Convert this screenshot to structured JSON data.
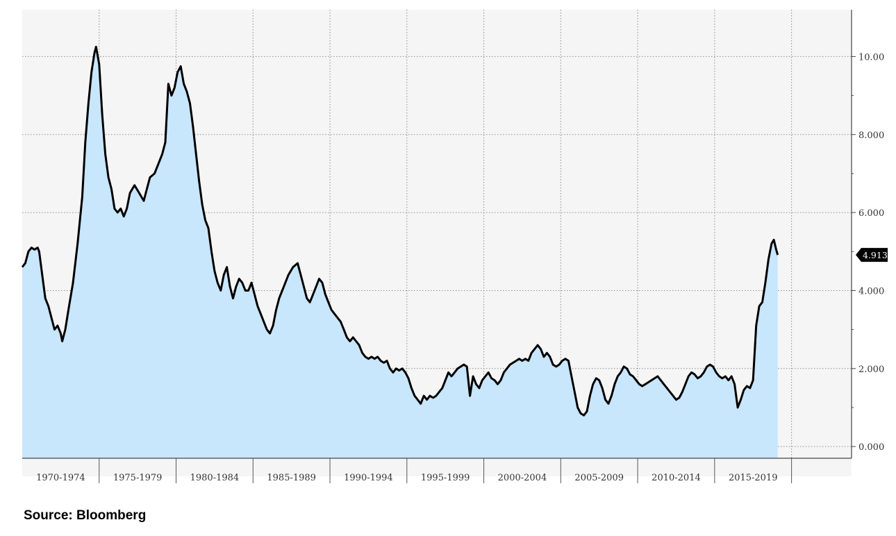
{
  "chart_data": {
    "type": "area",
    "title": "",
    "xlabel": "",
    "ylabel": "",
    "x_tick_labels": [
      "1970-1974",
      "1975-1979",
      "1980-1984",
      "1985-1989",
      "1990-1994",
      "1995-1999",
      "2000-2004",
      "2005-2009",
      "2010-2014",
      "2015-2019"
    ],
    "y_tick_labels": [
      "0.000",
      "2.000",
      "4.000",
      "6.000",
      "8.000",
      "10.00"
    ],
    "xlim": [
      1970.0,
      2023.9
    ],
    "ylim": [
      -0.3,
      11.2
    ],
    "grid": true,
    "last_value_label": "4.913",
    "colors": {
      "fill": "#c8e6fc",
      "line": "#000000",
      "background": "#f5f5f5",
      "badge": "#000000"
    },
    "series": [
      {
        "values": [
          [
            1970.0,
            4.6
          ],
          [
            1970.2,
            4.7
          ],
          [
            1970.4,
            5.0
          ],
          [
            1970.6,
            5.1
          ],
          [
            1970.8,
            5.05
          ],
          [
            1971.0,
            5.1
          ],
          [
            1971.1,
            5.0
          ],
          [
            1971.3,
            4.4
          ],
          [
            1971.5,
            3.8
          ],
          [
            1971.7,
            3.6
          ],
          [
            1971.9,
            3.3
          ],
          [
            1972.1,
            3.0
          ],
          [
            1972.3,
            3.1
          ],
          [
            1972.5,
            2.9
          ],
          [
            1972.6,
            2.7
          ],
          [
            1972.8,
            3.0
          ],
          [
            1973.0,
            3.5
          ],
          [
            1973.3,
            4.2
          ],
          [
            1973.6,
            5.2
          ],
          [
            1973.9,
            6.4
          ],
          [
            1974.1,
            7.8
          ],
          [
            1974.3,
            8.8
          ],
          [
            1974.5,
            9.6
          ],
          [
            1974.7,
            10.1
          ],
          [
            1974.8,
            10.25
          ],
          [
            1975.0,
            9.8
          ],
          [
            1975.2,
            8.5
          ],
          [
            1975.4,
            7.5
          ],
          [
            1975.6,
            6.9
          ],
          [
            1975.8,
            6.6
          ],
          [
            1976.0,
            6.1
          ],
          [
            1976.2,
            6.0
          ],
          [
            1976.4,
            6.1
          ],
          [
            1976.6,
            5.9
          ],
          [
            1976.8,
            6.1
          ],
          [
            1977.0,
            6.5
          ],
          [
            1977.3,
            6.7
          ],
          [
            1977.6,
            6.5
          ],
          [
            1977.9,
            6.3
          ],
          [
            1978.1,
            6.6
          ],
          [
            1978.3,
            6.9
          ],
          [
            1978.6,
            7.0
          ],
          [
            1978.9,
            7.3
          ],
          [
            1979.1,
            7.5
          ],
          [
            1979.3,
            7.8
          ],
          [
            1979.5,
            9.3
          ],
          [
            1979.7,
            9.0
          ],
          [
            1979.9,
            9.2
          ],
          [
            1980.1,
            9.6
          ],
          [
            1980.3,
            9.75
          ],
          [
            1980.5,
            9.3
          ],
          [
            1980.7,
            9.1
          ],
          [
            1980.9,
            8.8
          ],
          [
            1981.1,
            8.2
          ],
          [
            1981.3,
            7.5
          ],
          [
            1981.5,
            6.8
          ],
          [
            1981.7,
            6.2
          ],
          [
            1981.9,
            5.8
          ],
          [
            1982.1,
            5.6
          ],
          [
            1982.3,
            5.0
          ],
          [
            1982.5,
            4.5
          ],
          [
            1982.7,
            4.2
          ],
          [
            1982.9,
            4.0
          ],
          [
            1983.1,
            4.4
          ],
          [
            1983.3,
            4.6
          ],
          [
            1983.5,
            4.1
          ],
          [
            1983.7,
            3.8
          ],
          [
            1983.9,
            4.1
          ],
          [
            1984.1,
            4.3
          ],
          [
            1984.3,
            4.2
          ],
          [
            1984.5,
            4.0
          ],
          [
            1984.7,
            4.0
          ],
          [
            1984.9,
            4.2
          ],
          [
            1985.1,
            3.9
          ],
          [
            1985.3,
            3.6
          ],
          [
            1985.5,
            3.4
          ],
          [
            1985.7,
            3.2
          ],
          [
            1985.9,
            3.0
          ],
          [
            1986.1,
            2.9
          ],
          [
            1986.3,
            3.1
          ],
          [
            1986.5,
            3.5
          ],
          [
            1986.7,
            3.8
          ],
          [
            1987.0,
            4.1
          ],
          [
            1987.3,
            4.4
          ],
          [
            1987.6,
            4.6
          ],
          [
            1987.9,
            4.7
          ],
          [
            1988.1,
            4.4
          ],
          [
            1988.3,
            4.1
          ],
          [
            1988.5,
            3.8
          ],
          [
            1988.7,
            3.7
          ],
          [
            1988.9,
            3.9
          ],
          [
            1989.1,
            4.1
          ],
          [
            1989.3,
            4.3
          ],
          [
            1989.5,
            4.2
          ],
          [
            1989.7,
            3.9
          ],
          [
            1989.9,
            3.7
          ],
          [
            1990.1,
            3.5
          ],
          [
            1990.3,
            3.4
          ],
          [
            1990.5,
            3.3
          ],
          [
            1990.7,
            3.2
          ],
          [
            1990.9,
            3.0
          ],
          [
            1991.1,
            2.8
          ],
          [
            1991.3,
            2.7
          ],
          [
            1991.5,
            2.8
          ],
          [
            1991.7,
            2.7
          ],
          [
            1991.9,
            2.6
          ],
          [
            1992.1,
            2.4
          ],
          [
            1992.3,
            2.3
          ],
          [
            1992.5,
            2.25
          ],
          [
            1992.7,
            2.3
          ],
          [
            1992.9,
            2.25
          ],
          [
            1993.1,
            2.3
          ],
          [
            1993.3,
            2.2
          ],
          [
            1993.5,
            2.15
          ],
          [
            1993.7,
            2.2
          ],
          [
            1993.9,
            2.0
          ],
          [
            1994.1,
            1.9
          ],
          [
            1994.3,
            2.0
          ],
          [
            1994.5,
            1.95
          ],
          [
            1994.7,
            2.0
          ],
          [
            1994.9,
            1.9
          ],
          [
            1995.1,
            1.75
          ],
          [
            1995.3,
            1.5
          ],
          [
            1995.5,
            1.3
          ],
          [
            1995.7,
            1.2
          ],
          [
            1995.9,
            1.1
          ],
          [
            1996.1,
            1.3
          ],
          [
            1996.3,
            1.2
          ],
          [
            1996.5,
            1.3
          ],
          [
            1996.7,
            1.25
          ],
          [
            1996.9,
            1.3
          ],
          [
            1997.1,
            1.4
          ],
          [
            1997.3,
            1.5
          ],
          [
            1997.5,
            1.7
          ],
          [
            1997.7,
            1.9
          ],
          [
            1997.9,
            1.8
          ],
          [
            1998.1,
            1.9
          ],
          [
            1998.3,
            2.0
          ],
          [
            1998.5,
            2.05
          ],
          [
            1998.7,
            2.1
          ],
          [
            1998.9,
            2.05
          ],
          [
            1999.1,
            1.3
          ],
          [
            1999.3,
            1.8
          ],
          [
            1999.5,
            1.6
          ],
          [
            1999.7,
            1.5
          ],
          [
            1999.9,
            1.7
          ],
          [
            2000.1,
            1.8
          ],
          [
            2000.3,
            1.9
          ],
          [
            2000.5,
            1.75
          ],
          [
            2000.7,
            1.7
          ],
          [
            2000.9,
            1.6
          ],
          [
            2001.1,
            1.7
          ],
          [
            2001.3,
            1.9
          ],
          [
            2001.5,
            2.0
          ],
          [
            2001.7,
            2.1
          ],
          [
            2001.9,
            2.15
          ],
          [
            2002.1,
            2.2
          ],
          [
            2002.3,
            2.25
          ],
          [
            2002.5,
            2.2
          ],
          [
            2002.7,
            2.25
          ],
          [
            2002.9,
            2.2
          ],
          [
            2003.1,
            2.4
          ],
          [
            2003.3,
            2.5
          ],
          [
            2003.5,
            2.6
          ],
          [
            2003.7,
            2.5
          ],
          [
            2003.9,
            2.3
          ],
          [
            2004.1,
            2.4
          ],
          [
            2004.3,
            2.3
          ],
          [
            2004.5,
            2.1
          ],
          [
            2004.7,
            2.05
          ],
          [
            2004.9,
            2.1
          ],
          [
            2005.1,
            2.2
          ],
          [
            2005.3,
            2.25
          ],
          [
            2005.5,
            2.2
          ],
          [
            2005.7,
            1.8
          ],
          [
            2005.9,
            1.4
          ],
          [
            2006.1,
            1.0
          ],
          [
            2006.3,
            0.85
          ],
          [
            2006.5,
            0.8
          ],
          [
            2006.7,
            0.9
          ],
          [
            2006.9,
            1.3
          ],
          [
            2007.1,
            1.6
          ],
          [
            2007.3,
            1.75
          ],
          [
            2007.5,
            1.7
          ],
          [
            2007.7,
            1.5
          ],
          [
            2007.9,
            1.2
          ],
          [
            2008.1,
            1.1
          ],
          [
            2008.3,
            1.3
          ],
          [
            2008.5,
            1.6
          ],
          [
            2008.7,
            1.8
          ],
          [
            2008.9,
            1.9
          ],
          [
            2009.1,
            2.05
          ],
          [
            2009.3,
            2.0
          ],
          [
            2009.5,
            1.85
          ],
          [
            2009.7,
            1.8
          ],
          [
            2009.9,
            1.7
          ],
          [
            2010.1,
            1.6
          ],
          [
            2010.3,
            1.55
          ],
          [
            2010.5,
            1.6
          ],
          [
            2010.7,
            1.65
          ],
          [
            2010.9,
            1.7
          ],
          [
            2011.1,
            1.75
          ],
          [
            2011.3,
            1.8
          ],
          [
            2011.5,
            1.7
          ],
          [
            2011.7,
            1.6
          ],
          [
            2011.9,
            1.5
          ],
          [
            2012.1,
            1.4
          ],
          [
            2012.3,
            1.3
          ],
          [
            2012.5,
            1.2
          ],
          [
            2012.7,
            1.25
          ],
          [
            2012.9,
            1.4
          ],
          [
            2013.1,
            1.6
          ],
          [
            2013.3,
            1.8
          ],
          [
            2013.5,
            1.9
          ],
          [
            2013.7,
            1.85
          ],
          [
            2013.9,
            1.75
          ],
          [
            2014.1,
            1.8
          ],
          [
            2014.3,
            1.9
          ],
          [
            2014.5,
            2.05
          ],
          [
            2014.7,
            2.1
          ],
          [
            2014.9,
            2.05
          ],
          [
            2015.1,
            1.9
          ],
          [
            2015.3,
            1.8
          ],
          [
            2015.5,
            1.75
          ],
          [
            2015.7,
            1.8
          ],
          [
            2015.9,
            1.7
          ],
          [
            2016.1,
            1.8
          ],
          [
            2016.3,
            1.6
          ],
          [
            2016.5,
            1.0
          ],
          [
            2016.7,
            1.2
          ],
          [
            2016.9,
            1.45
          ],
          [
            2017.1,
            1.55
          ],
          [
            2017.3,
            1.5
          ],
          [
            2017.5,
            1.7
          ],
          [
            2017.7,
            3.1
          ],
          [
            2017.9,
            3.6
          ],
          [
            2018.1,
            3.7
          ],
          [
            2018.3,
            4.2
          ],
          [
            2018.5,
            4.8
          ],
          [
            2018.7,
            5.2
          ],
          [
            2018.85,
            5.3
          ],
          [
            2019.0,
            5.05
          ],
          [
            2019.1,
            4.913
          ]
        ]
      }
    ]
  },
  "footer": {
    "source": "Source: Bloomberg"
  }
}
